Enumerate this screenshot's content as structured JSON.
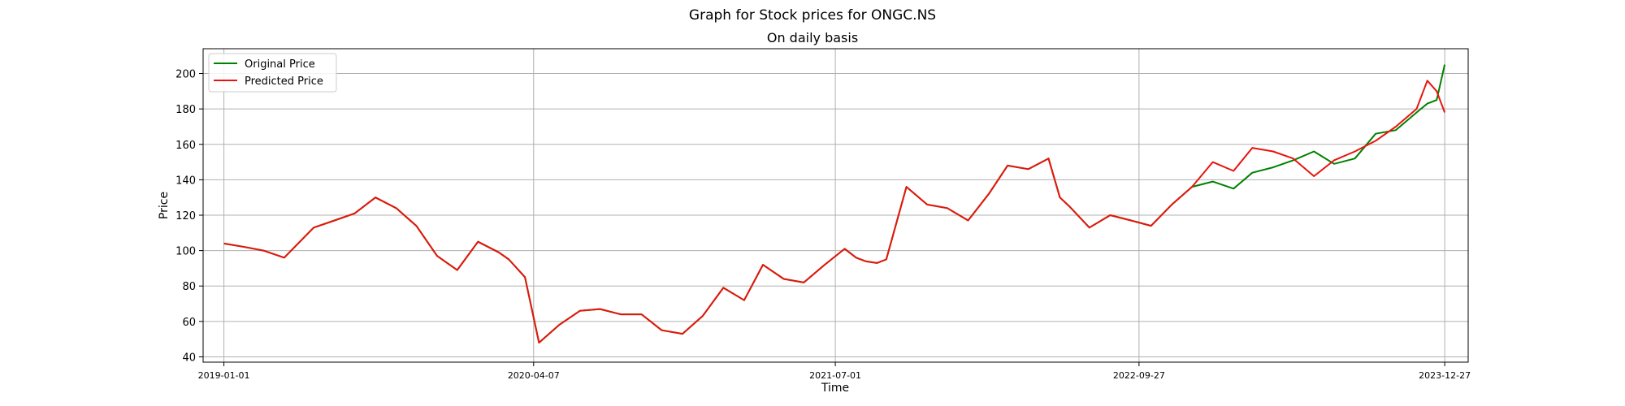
{
  "chart_data": {
    "type": "line",
    "title": "Graph for Stock prices for ONGC.NS",
    "subtitle": "On daily basis",
    "xlabel": "Time",
    "ylabel": "Price",
    "x_range": [
      "2018-12-01",
      "2024-01-31"
    ],
    "ylim": [
      37,
      214
    ],
    "yticks": [
      40,
      60,
      80,
      100,
      120,
      140,
      160,
      180,
      200
    ],
    "xticks": [
      "2019-01-01",
      "2020-04-07",
      "2021-07-01",
      "2022-09-27",
      "2023-12-27"
    ],
    "grid": true,
    "legend_placement": "upper-left",
    "series": [
      {
        "name": "Original Price",
        "color": "#008000",
        "x": [
          "2019-01-01",
          "2019-02-01",
          "2019-03-01",
          "2019-04-01",
          "2019-05-15",
          "2019-06-15",
          "2019-07-15",
          "2019-08-15",
          "2019-09-15",
          "2019-10-15",
          "2019-11-15",
          "2019-12-15",
          "2020-01-15",
          "2020-02-15",
          "2020-03-01",
          "2020-03-25",
          "2020-04-15",
          "2020-05-15",
          "2020-06-15",
          "2020-07-15",
          "2020-08-15",
          "2020-09-15",
          "2020-10-15",
          "2020-11-15",
          "2020-12-15",
          "2021-01-15",
          "2021-02-15",
          "2021-03-15",
          "2021-04-15",
          "2021-05-15",
          "2021-06-15",
          "2021-07-15",
          "2021-08-01",
          "2021-08-15",
          "2021-09-01",
          "2021-09-15",
          "2021-10-15",
          "2021-11-15",
          "2021-12-15",
          "2022-01-15",
          "2022-02-15",
          "2022-03-15",
          "2022-04-15",
          "2022-05-15",
          "2022-06-01",
          "2022-06-15",
          "2022-07-15",
          "2022-08-15",
          "2022-09-15",
          "2022-10-15",
          "2022-11-15",
          "2022-12-15",
          "2023-01-15",
          "2023-02-15",
          "2023-03-15",
          "2023-04-15",
          "2023-05-15",
          "2023-06-15",
          "2023-07-15",
          "2023-08-15",
          "2023-09-15",
          "2023-10-15",
          "2023-11-15",
          "2023-12-01",
          "2023-12-15",
          "2023-12-27"
        ],
        "values": [
          104,
          102,
          100,
          96,
          113,
          117,
          121,
          130,
          124,
          114,
          97,
          89,
          105,
          99,
          95,
          85,
          48,
          58,
          66,
          67,
          64,
          64,
          55,
          53,
          63,
          79,
          72,
          92,
          84,
          82,
          92,
          101,
          96,
          94,
          93,
          95,
          136,
          126,
          124,
          117,
          132,
          148,
          146,
          152,
          130,
          125,
          113,
          120,
          117,
          114,
          126,
          136,
          139,
          135,
          144,
          147,
          151,
          156,
          149,
          152,
          166,
          168,
          178,
          183,
          185,
          205
        ]
      },
      {
        "name": "Predicted Price",
        "color": "#e8140d",
        "x": [
          "2019-01-01",
          "2019-02-01",
          "2019-03-01",
          "2019-04-01",
          "2019-05-15",
          "2019-06-15",
          "2019-07-15",
          "2019-08-15",
          "2019-09-15",
          "2019-10-15",
          "2019-11-15",
          "2019-12-15",
          "2020-01-15",
          "2020-02-15",
          "2020-03-01",
          "2020-03-25",
          "2020-04-15",
          "2020-05-15",
          "2020-06-15",
          "2020-07-15",
          "2020-08-15",
          "2020-09-15",
          "2020-10-15",
          "2020-11-15",
          "2020-12-15",
          "2021-01-15",
          "2021-02-15",
          "2021-03-15",
          "2021-04-15",
          "2021-05-15",
          "2021-06-15",
          "2021-07-15",
          "2021-08-01",
          "2021-08-15",
          "2021-09-01",
          "2021-09-15",
          "2021-10-15",
          "2021-11-15",
          "2021-12-15",
          "2022-01-15",
          "2022-02-15",
          "2022-03-15",
          "2022-04-15",
          "2022-05-15",
          "2022-06-01",
          "2022-06-15",
          "2022-07-15",
          "2022-08-15",
          "2022-09-15",
          "2022-10-15",
          "2022-11-15",
          "2022-12-15",
          "2023-01-15",
          "2023-02-15",
          "2023-03-15",
          "2023-04-15",
          "2023-05-15",
          "2023-06-15",
          "2023-07-15",
          "2023-08-15",
          "2023-09-15",
          "2023-10-15",
          "2023-11-15",
          "2023-12-01",
          "2023-12-15",
          "2023-12-27"
        ],
        "values": [
          104,
          102,
          100,
          96,
          113,
          117,
          121,
          130,
          124,
          114,
          97,
          89,
          105,
          99,
          95,
          85,
          48,
          58,
          66,
          67,
          64,
          64,
          55,
          53,
          63,
          79,
          72,
          92,
          84,
          82,
          92,
          101,
          96,
          94,
          93,
          95,
          136,
          126,
          124,
          117,
          132,
          148,
          146,
          152,
          130,
          125,
          113,
          120,
          117,
          114,
          126,
          136,
          150,
          145,
          158,
          156,
          152,
          142,
          151,
          156,
          162,
          170,
          180,
          196,
          190,
          178
        ]
      }
    ]
  }
}
